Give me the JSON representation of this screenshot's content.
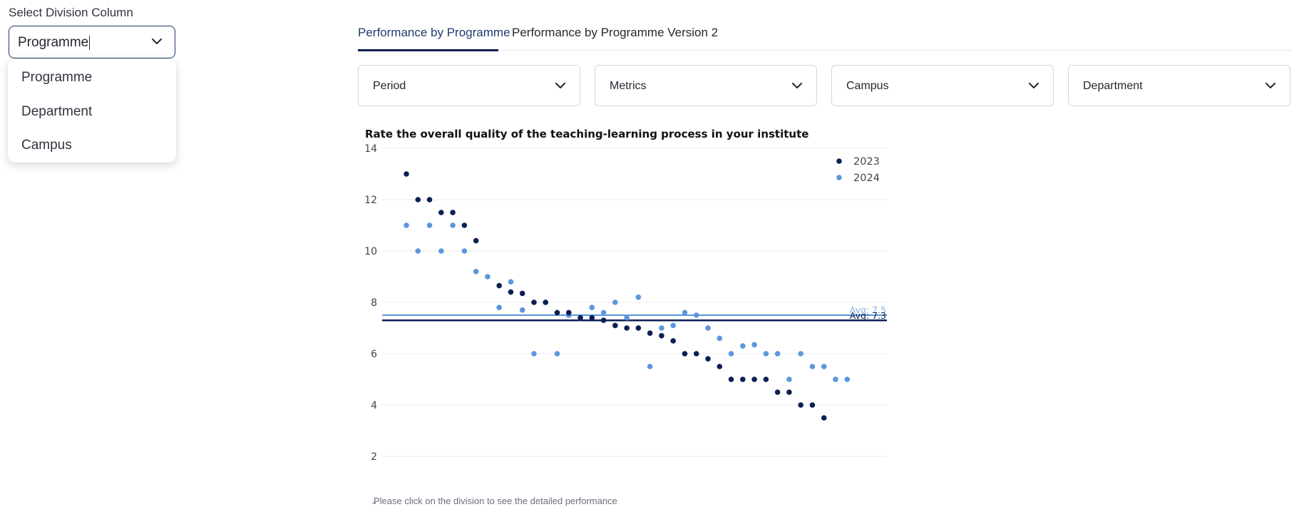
{
  "division": {
    "label": "Select Division Column",
    "selected": "Programme",
    "options": [
      "Programme",
      "Department",
      "Campus"
    ]
  },
  "tabs": [
    {
      "label": "Performance by Programme",
      "active": true
    },
    {
      "label": "Performance by Programme Version 2",
      "active": false
    }
  ],
  "filters": [
    {
      "label": "Period"
    },
    {
      "label": "Metrics"
    },
    {
      "label": "Campus"
    },
    {
      "label": "Department"
    }
  ],
  "icons": {
    "dropdown": "chevron-down-icon"
  },
  "colors": {
    "accent": "#0b1f52",
    "series_2023": "#0b1f52",
    "series_2024": "#5b97dc",
    "text": "#262730"
  },
  "chart_data": {
    "type": "scatter",
    "title": "Rate the overall quality of the teaching-learning process in your institute",
    "ylim": [
      2,
      14
    ],
    "y_ticks": [
      2,
      4,
      6,
      8,
      10,
      12,
      14
    ],
    "grid": true,
    "legend_position": "top-right",
    "series": [
      {
        "name": "2023",
        "color": "#0b1f52",
        "x": [
          1,
          2,
          3,
          4,
          5,
          6,
          7,
          9,
          10,
          11,
          12,
          13,
          14,
          15,
          16,
          17,
          18,
          19,
          20,
          21,
          22,
          23,
          24,
          25,
          26,
          27,
          28,
          29,
          30,
          31,
          32,
          33,
          34,
          35,
          36,
          37,
          38,
          39
        ],
        "values": [
          13,
          12,
          12,
          11.5,
          11.5,
          11,
          10.4,
          8.65,
          8.4,
          8.35,
          8,
          8,
          7.6,
          7.6,
          7.4,
          7.4,
          7.3,
          7.1,
          7,
          7,
          6.8,
          6.7,
          6.5,
          6,
          6,
          5.8,
          5.5,
          5,
          5,
          5,
          5,
          4.5,
          4.5,
          4,
          4,
          3.5,
          null,
          null
        ]
      },
      {
        "name": "2024",
        "color": "#5b97dc",
        "x": [
          1,
          2,
          3,
          4,
          5,
          6,
          7,
          8,
          9,
          10,
          11,
          12,
          13,
          14,
          15,
          16,
          17,
          18,
          19,
          20,
          21,
          22,
          23,
          24,
          25,
          26,
          27,
          28,
          29,
          30,
          31,
          32,
          33,
          34,
          35,
          36,
          37,
          38,
          39
        ],
        "values": [
          11,
          10,
          11,
          10,
          11,
          10,
          9.2,
          9,
          7.8,
          8.8,
          7.7,
          6,
          8,
          6,
          7.5,
          7.4,
          7.8,
          7.6,
          8,
          7.4,
          8.2,
          5.5,
          7,
          7.1,
          7.6,
          7.5,
          7,
          6.6,
          6,
          6.3,
          6.35,
          6,
          6,
          5,
          6,
          5.5,
          5.5,
          5,
          5
        ]
      }
    ],
    "reference_lines": [
      {
        "label": "Avg: 7.5",
        "value": 7.5,
        "color": "#5b97dc"
      },
      {
        "label": "Avg: 7.3",
        "value": 7.3,
        "color": "#0b1f52"
      }
    ]
  },
  "footnote": "Please click on the division to see the detailed performance"
}
